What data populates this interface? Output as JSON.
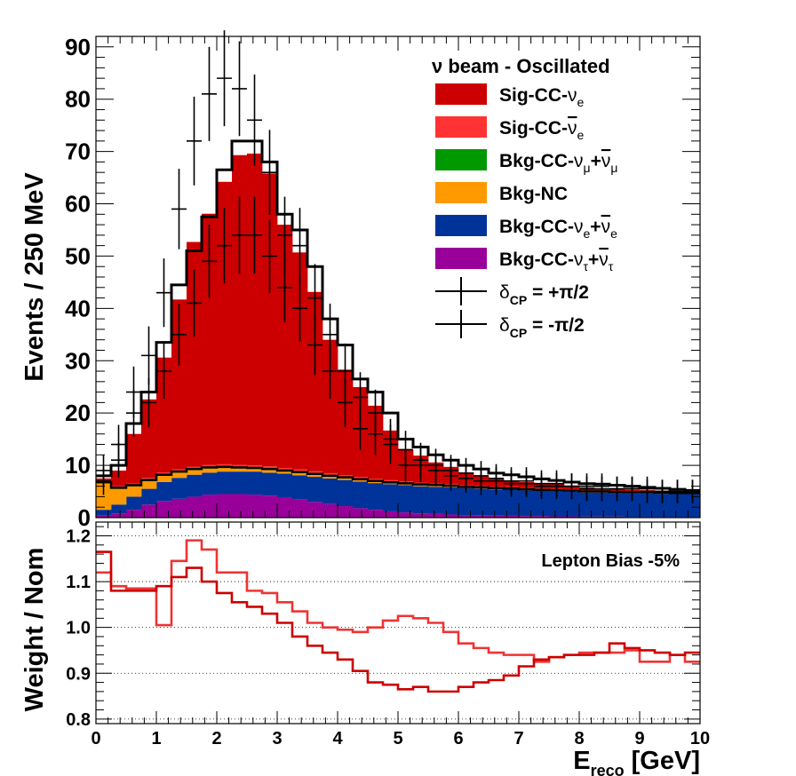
{
  "chart_data": [
    {
      "type": "area",
      "panel": "top",
      "stacked": true,
      "ylabel": "Events / 250 MeV",
      "xlim": [
        0,
        10
      ],
      "ylim": [
        0,
        92
      ],
      "y_ticks": [
        "0",
        "10",
        "20",
        "30",
        "40",
        "50",
        "60",
        "70",
        "80",
        "90"
      ],
      "grid": false,
      "legend_position": "top-right",
      "legend_header": "ν beam - Oscillated",
      "bin_edges": [
        0,
        0.25,
        0.5,
        0.75,
        1,
        1.25,
        1.5,
        1.75,
        2,
        2.25,
        2.5,
        2.75,
        3,
        3.25,
        3.5,
        3.75,
        4,
        4.25,
        4.5,
        4.75,
        5,
        5.25,
        5.5,
        5.75,
        6,
        6.25,
        6.5,
        6.75,
        7,
        7.25,
        7.5,
        7.75,
        8,
        8.25,
        8.5,
        8.75,
        9,
        9.25,
        9.5,
        9.75,
        10
      ],
      "series": [
        {
          "name": "Bkg-CC-ντ+ν̄τ",
          "color": "#990099",
          "values": [
            0.5,
            0.8,
            1.5,
            2.5,
            3.2,
            3.6,
            4.0,
            4.4,
            4.5,
            4.5,
            4.4,
            4.2,
            3.9,
            3.5,
            3.0,
            2.6,
            2.2,
            1.8,
            1.5,
            1.2,
            1.0,
            0.8,
            0.7,
            0.6,
            0.5,
            0.45,
            0.4,
            0.35,
            0.3,
            0.3,
            0.25,
            0.25,
            0.2,
            0.2,
            0.2,
            0.15,
            0.15,
            0.15,
            0.1,
            0.1
          ]
        },
        {
          "name": "Bkg-CC-νe+ν̄e",
          "color": "#003399",
          "values": [
            1.0,
            1.7,
            2.5,
            3.0,
            3.6,
            4.0,
            4.2,
            4.2,
            4.3,
            4.3,
            4.4,
            4.4,
            4.5,
            4.6,
            4.8,
            4.9,
            5.0,
            5.1,
            5.1,
            5.2,
            5.2,
            5.2,
            5.2,
            5.2,
            5.1,
            5.1,
            5.0,
            5.0,
            4.9,
            4.8,
            4.8,
            4.7,
            4.6,
            4.6,
            4.5,
            4.5,
            4.5,
            4.4,
            4.4,
            4.4
          ]
        },
        {
          "name": "Bkg-NC",
          "color": "#ff9900",
          "values": [
            5.0,
            3.0,
            2.0,
            1.5,
            1.2,
            1.0,
            0.9,
            0.8,
            0.7,
            0.6,
            0.5,
            0.5,
            0.4,
            0.4,
            0.35,
            0.3,
            0.3,
            0.25,
            0.25,
            0.2,
            0.2,
            0.2,
            0.2,
            0.15,
            0.15,
            0.15,
            0.15,
            0.1,
            0.1,
            0.1,
            0.1,
            0.1,
            0.1,
            0.1,
            0.1,
            0.1,
            0.1,
            0.1,
            0.1,
            0.1
          ]
        },
        {
          "name": "Bkg-CC-νμ+ν̄μ",
          "color": "#009900",
          "values": [
            0.3,
            0.2,
            0.2,
            0.2,
            0.2,
            0.2,
            0.2,
            0.2,
            0.2,
            0.2,
            0.2,
            0.2,
            0.2,
            0.2,
            0.2,
            0.2,
            0.2,
            0.2,
            0.15,
            0.15,
            0.15,
            0.15,
            0.15,
            0.15,
            0.1,
            0.1,
            0.1,
            0.1,
            0.1,
            0.1,
            0.1,
            0.1,
            0.1,
            0.1,
            0.1,
            0.1,
            0.1,
            0.1,
            0.1,
            0.1
          ]
        },
        {
          "name": "Sig-CC-ν̄e",
          "color": "#ff3333",
          "values": [
            0.3,
            0.3,
            0.3,
            0.4,
            0.4,
            0.4,
            0.4,
            0.5,
            0.5,
            0.5,
            0.5,
            0.5,
            0.5,
            0.5,
            0.5,
            0.5,
            0.4,
            0.4,
            0.4,
            0.4,
            0.4,
            0.3,
            0.3,
            0.3,
            0.3,
            0.3,
            0.3,
            0.3,
            0.25,
            0.25,
            0.25,
            0.25,
            0.2,
            0.2,
            0.2,
            0.2,
            0.2,
            0.2,
            0.2,
            0.2
          ]
        },
        {
          "name": "Sig-CC-νe",
          "color": "#cc0000",
          "values": [
            0.4,
            3.0,
            9.5,
            15.0,
            22.0,
            32.5,
            43.0,
            48.0,
            54.0,
            59.2,
            59.6,
            56.0,
            46.5,
            41.5,
            34.3,
            25.5,
            20.2,
            17.2,
            14.0,
            9.5,
            6.0,
            5.2,
            4.0,
            3.3,
            2.5,
            1.8,
            1.6,
            1.3,
            1.15,
            0.95,
            0.9,
            0.6,
            0.55,
            0.4,
            0.3,
            0.25,
            0.2,
            0.2,
            0.2,
            0.15
          ]
        }
      ],
      "overlays": [
        {
          "name": "Total (nominal, δCP = -π/2)",
          "color": "#000000",
          "values": [
            8.0,
            10.0,
            18.0,
            24.0,
            33.5,
            44.5,
            51.0,
            57.5,
            66.5,
            72.0,
            72.0,
            68.0,
            58.0,
            55.0,
            48.0,
            38.0,
            33.0,
            26.5,
            24.0,
            20.0,
            15.0,
            13.5,
            12.0,
            11.0,
            10.0,
            9.3,
            8.5,
            8.2,
            7.8,
            7.4,
            7.1,
            6.8,
            6.5,
            6.4,
            6.2,
            6.0,
            5.8,
            5.6,
            5.4,
            5.2
          ]
        },
        {
          "name": "Background total",
          "color": "#000000",
          "values": [
            6.8,
            5.7,
            6.2,
            7.2,
            8.2,
            8.8,
            9.3,
            9.6,
            9.7,
            9.6,
            9.5,
            9.3,
            9.0,
            8.7,
            8.35,
            8.0,
            7.7,
            7.35,
            7.0,
            6.75,
            6.55,
            6.35,
            6.25,
            6.1,
            5.85,
            5.8,
            5.65,
            5.55,
            5.4,
            5.3,
            5.25,
            5.15,
            5.0,
            5.0,
            4.9,
            4.85,
            4.85,
            4.75,
            4.7,
            4.7
          ]
        }
      ],
      "data_points": [
        {
          "name": "δCP = +π/2",
          "x": [
            0.125,
            0.375,
            0.625,
            0.875,
            1.125,
            1.375,
            1.625,
            1.875,
            2.125,
            2.375,
            2.625,
            2.875,
            3.125,
            3.375,
            3.625,
            3.875,
            4.125,
            4.375,
            4.625,
            4.875,
            5.125,
            5.375,
            5.625,
            5.875,
            6.125,
            6.375,
            6.625,
            6.875,
            7.125,
            7.375,
            7.625,
            7.875,
            8.125,
            8.375,
            8.625,
            8.875,
            9.125,
            9.375,
            9.625,
            9.875
          ],
          "y": [
            7.0,
            11.0,
            20.0,
            22.0,
            28.0,
            35.0,
            41.0,
            49.0,
            52.0,
            54.0,
            54.0,
            50.0,
            44.0,
            40.0,
            33.0,
            28.0,
            22.0,
            17.0,
            16.0,
            14.0,
            10.0,
            10.0,
            9.0,
            8.0,
            7.5,
            7.0,
            7.0,
            6.5,
            6.5,
            6.0,
            6.0,
            6.0,
            5.5,
            5.5,
            5.5,
            5.5,
            5.0,
            5.0,
            5.0,
            5.0
          ]
        },
        {
          "name": "δCP = -π/2",
          "x": [
            0.125,
            0.375,
            0.625,
            0.875,
            1.125,
            1.375,
            1.625,
            1.875,
            2.125,
            2.375,
            2.625,
            2.875,
            3.125,
            3.375,
            3.625,
            3.875,
            4.125,
            4.375,
            4.625,
            4.875,
            5.125,
            5.375,
            5.625,
            5.875,
            6.125,
            6.375,
            6.625,
            6.875,
            7.125,
            7.375,
            7.625,
            7.875,
            8.125,
            8.375,
            8.625,
            8.875,
            9.125,
            9.375,
            9.625,
            9.875
          ],
          "y": [
            9.0,
            14.0,
            24.0,
            31.0,
            43.0,
            59.0,
            72.0,
            81.0,
            84.0,
            82.0,
            76.0,
            66.0,
            54.0,
            52.0,
            42.0,
            35.0,
            28.0,
            23.0,
            20.0,
            15.0,
            13.0,
            11.0,
            10.0,
            9.0,
            8.5,
            8.0,
            7.5,
            7.0,
            7.0,
            6.5,
            6.5,
            6.0,
            6.0,
            6.0,
            5.5,
            5.5,
            5.5,
            5.0,
            5.0,
            5.0
          ]
        }
      ],
      "legend": [
        {
          "label": "Sig-CC-",
          "sym": "ν",
          "sub": "e",
          "bar": false,
          "sub2": "",
          "kind": "box",
          "color": "#cc0000"
        },
        {
          "label": "Sig-CC-",
          "sym": "ν",
          "sub": "e",
          "bar": true,
          "sub2": "",
          "kind": "box",
          "color": "#ff3333"
        },
        {
          "label": "Bkg-CC-",
          "sym": "ν",
          "sub": "μ",
          "bar": false,
          "sub2": "μ",
          "kind": "box",
          "color": "#009900"
        },
        {
          "label": "Bkg-NC",
          "sym": "",
          "sub": "",
          "bar": false,
          "sub2": "",
          "kind": "box",
          "color": "#ff9900"
        },
        {
          "label": "Bkg-CC-",
          "sym": "ν",
          "sub": "e",
          "bar": false,
          "sub2": "e",
          "kind": "box",
          "color": "#003399"
        },
        {
          "label": "Bkg-CC-",
          "sym": "ν",
          "sub": "τ",
          "bar": false,
          "sub2": "τ",
          "kind": "box",
          "color": "#990099"
        },
        {
          "label": "δ",
          "sub": "CP",
          "value": " = +π/2",
          "kind": "marker",
          "color": "#000000"
        },
        {
          "label": "δ",
          "sub": "CP",
          "value": " = -π/2",
          "kind": "marker",
          "color": "#000000"
        }
      ]
    },
    {
      "type": "line",
      "panel": "bottom",
      "xlabel_main": "E",
      "xlabel_sub": "reco",
      "xlabel_unit": " [GeV]",
      "ylabel": "Weight / Nom",
      "xlim": [
        0,
        10
      ],
      "ylim": [
        0.79,
        1.23
      ],
      "x_ticks": [
        "0",
        "1",
        "2",
        "3",
        "4",
        "5",
        "6",
        "7",
        "8",
        "9",
        "10"
      ],
      "y_ticks": [
        "0.8",
        "0.9",
        "1.0",
        "1.1",
        "1.2"
      ],
      "y_tick_values": [
        0.8,
        0.9,
        1.0,
        1.1,
        1.2
      ],
      "grid": "horizontal dotted",
      "annotation": "Lepton Bias -5%",
      "bin_edges": [
        0,
        0.25,
        0.5,
        0.75,
        1,
        1.25,
        1.5,
        1.75,
        2,
        2.25,
        2.5,
        2.75,
        3,
        3.25,
        3.5,
        3.75,
        4,
        4.25,
        4.5,
        4.75,
        5,
        5.25,
        5.5,
        5.75,
        6,
        6.25,
        6.5,
        6.75,
        7,
        7.25,
        7.5,
        7.75,
        8,
        8.25,
        8.5,
        8.75,
        9,
        9.25,
        9.5,
        9.75,
        10
      ],
      "series": [
        {
          "name": "δCP = +π/2 ratio",
          "color": "#ee3333",
          "values": [
            1.12,
            1.09,
            1.085,
            1.085,
            1.005,
            1.145,
            1.19,
            1.17,
            1.12,
            1.12,
            1.08,
            1.075,
            1.055,
            1.035,
            1.01,
            1.0,
            0.995,
            0.99,
            1.0,
            1.015,
            1.025,
            1.02,
            1.01,
            0.99,
            0.965,
            0.955,
            0.945,
            0.94,
            0.94,
            0.925,
            0.935,
            0.94,
            0.945,
            0.945,
            0.945,
            0.95,
            0.925,
            0.925,
            0.94,
            0.925
          ]
        },
        {
          "name": "δCP = -π/2 ratio",
          "color": "#cc0000",
          "values": [
            1.165,
            1.08,
            1.08,
            1.08,
            1.09,
            1.11,
            1.13,
            1.1,
            1.075,
            1.055,
            1.045,
            1.03,
            1.01,
            0.98,
            0.96,
            0.945,
            0.93,
            0.905,
            0.88,
            0.875,
            0.865,
            0.87,
            0.86,
            0.86,
            0.87,
            0.88,
            0.885,
            0.895,
            0.915,
            0.93,
            0.935,
            0.94,
            0.94,
            0.945,
            0.965,
            0.955,
            0.95,
            0.945,
            0.94,
            0.945
          ]
        }
      ]
    }
  ]
}
